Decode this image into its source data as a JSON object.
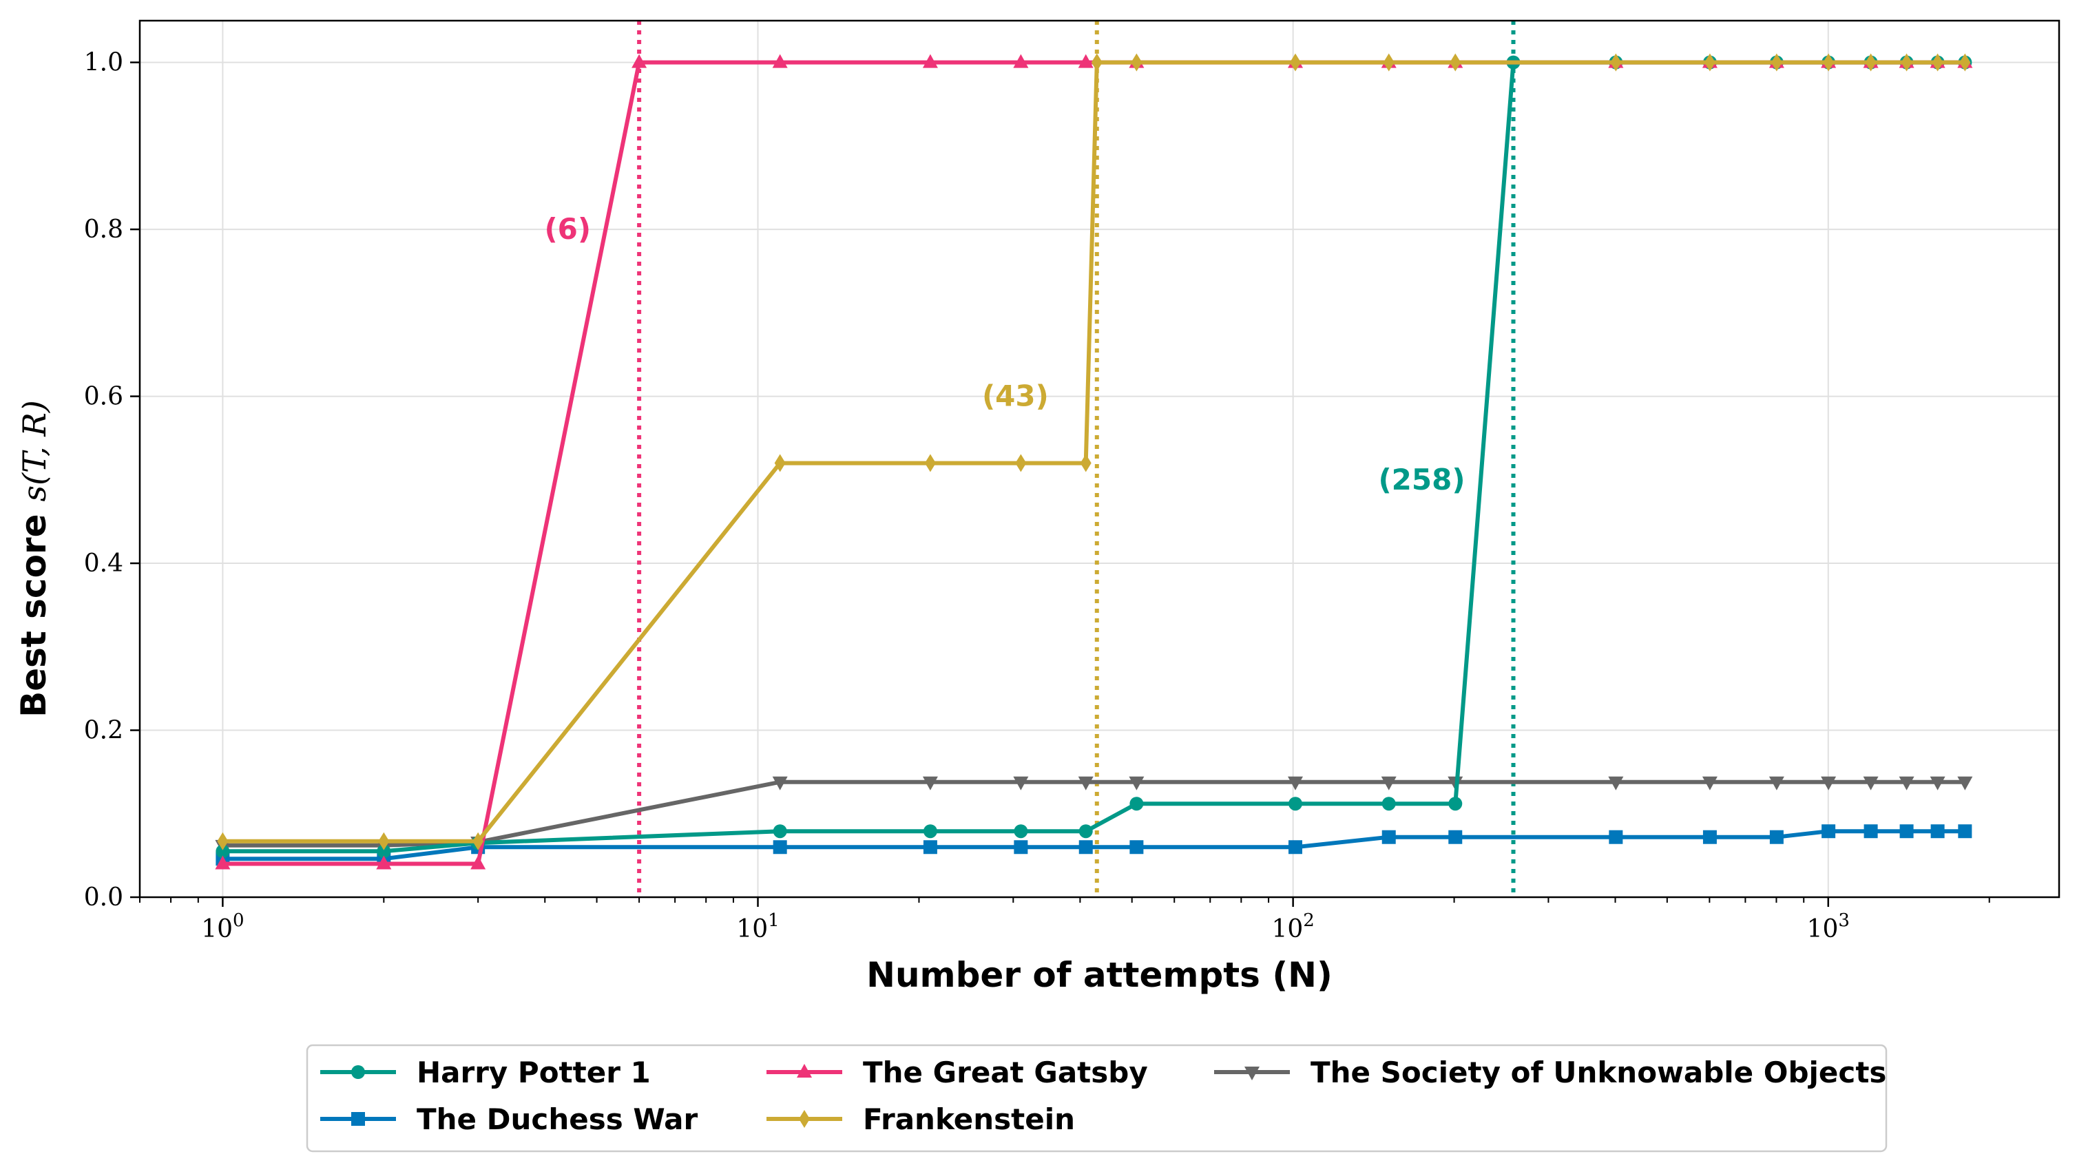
{
  "chart_data": {
    "type": "line",
    "xscale": "log",
    "xlabel": "Number of attempts (N)",
    "ylabel": "Best score",
    "ylabel_math": "s(T, R)",
    "xlim": [
      0.7,
      2700
    ],
    "ylim": [
      0,
      1.05
    ],
    "x_ticks": [
      {
        "value": 1,
        "base": "10",
        "exp": "0"
      },
      {
        "value": 10,
        "base": "10",
        "exp": "1"
      },
      {
        "value": 100,
        "base": "10",
        "exp": "2"
      },
      {
        "value": 1000,
        "base": "10",
        "exp": "3"
      }
    ],
    "y_ticks": [
      {
        "value": 0.0,
        "label": "0.0"
      },
      {
        "value": 0.2,
        "label": "0.2"
      },
      {
        "value": 0.4,
        "label": "0.4"
      },
      {
        "value": 0.6,
        "label": "0.6"
      },
      {
        "value": 0.8,
        "label": "0.8"
      },
      {
        "value": 1.0,
        "label": "1.0"
      }
    ],
    "grid": true,
    "legend_position": "bottom, outside",
    "series": [
      {
        "name": "Harry Potter 1",
        "color": "#009988",
        "marker": "circle",
        "x": [
          1,
          2,
          3,
          11,
          21,
          31,
          41,
          51,
          101,
          151,
          201,
          258,
          401,
          601,
          801,
          1001,
          1201,
          1401,
          1601,
          1801
        ],
        "y": [
          0.055,
          0.055,
          0.065,
          0.079,
          0.079,
          0.079,
          0.079,
          0.112,
          0.112,
          0.112,
          0.112,
          1.0,
          1.0,
          1.0,
          1.0,
          1.0,
          1.0,
          1.0,
          1.0,
          1.0
        ]
      },
      {
        "name": "The Duchess War",
        "color": "#0077BB",
        "marker": "square",
        "x": [
          1,
          2,
          3,
          11,
          21,
          31,
          41,
          51,
          101,
          151,
          201,
          401,
          601,
          801,
          1001,
          1201,
          1401,
          1601,
          1801
        ],
        "y": [
          0.046,
          0.046,
          0.06,
          0.06,
          0.06,
          0.06,
          0.06,
          0.06,
          0.06,
          0.072,
          0.072,
          0.072,
          0.072,
          0.072,
          0.079,
          0.079,
          0.079,
          0.079,
          0.079
        ]
      },
      {
        "name": "The Great Gatsby",
        "color": "#EE3377",
        "marker": "triangle-up",
        "x": [
          1,
          2,
          3,
          6,
          11,
          21,
          31,
          41,
          51,
          101,
          151,
          201,
          401,
          601,
          801,
          1001,
          1201,
          1401,
          1601,
          1801
        ],
        "y": [
          0.04,
          0.04,
          0.04,
          1.0,
          1.0,
          1.0,
          1.0,
          1.0,
          1.0,
          1.0,
          1.0,
          1.0,
          1.0,
          1.0,
          1.0,
          1.0,
          1.0,
          1.0,
          1.0,
          1.0
        ]
      },
      {
        "name": "Frankenstein",
        "color": "#CCAA33",
        "marker": "diamond",
        "x": [
          1,
          2,
          3,
          11,
          21,
          31,
          41,
          43,
          51,
          101,
          151,
          201,
          401,
          601,
          801,
          1001,
          1201,
          1401,
          1601,
          1801
        ],
        "y": [
          0.067,
          0.067,
          0.067,
          0.52,
          0.52,
          0.52,
          0.52,
          1.0,
          1.0,
          1.0,
          1.0,
          1.0,
          1.0,
          1.0,
          1.0,
          1.0,
          1.0,
          1.0,
          1.0,
          1.0
        ]
      },
      {
        "name": "The Society of Unknowable Objects",
        "color": "#666666",
        "marker": "triangle-down",
        "x": [
          1,
          2,
          3,
          11,
          21,
          31,
          41,
          51,
          101,
          151,
          201,
          401,
          601,
          801,
          1001,
          1201,
          1401,
          1601,
          1801
        ],
        "y": [
          0.062,
          0.062,
          0.066,
          0.138,
          0.138,
          0.138,
          0.138,
          0.138,
          0.138,
          0.138,
          0.138,
          0.138,
          0.138,
          0.138,
          0.138,
          0.138,
          0.138,
          0.138,
          0.138
        ]
      }
    ],
    "vlines": [
      {
        "x": 6,
        "color": "#EE3377",
        "label": "(6)",
        "label_y": 0.8
      },
      {
        "x": 43,
        "color": "#CCAA33",
        "label": "(43)",
        "label_y": 0.6
      },
      {
        "x": 258,
        "color": "#009988",
        "label": "(258)",
        "label_y": 0.5
      }
    ],
    "legend": {
      "columns": [
        [
          "Harry Potter 1",
          "The Duchess War"
        ],
        [
          "The Great Gatsby",
          "Frankenstein"
        ],
        [
          "The Society of Unknowable Objects"
        ]
      ]
    }
  }
}
